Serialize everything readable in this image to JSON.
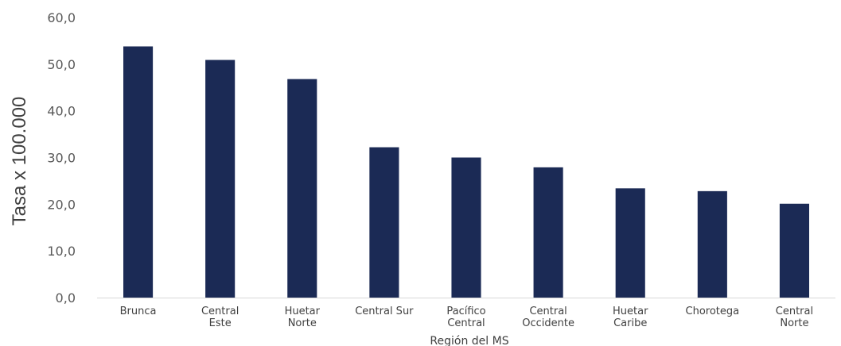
{
  "chart_data": {
    "type": "bar",
    "title": "",
    "categories": [
      "Brunca",
      "Central Este",
      "Huetar Norte",
      "Central Sur",
      "Pacífico Central",
      "Central Occidente",
      "Huetar Caribe",
      "Chorotega",
      "Central Norte"
    ],
    "category_lines": [
      [
        "Brunca"
      ],
      [
        "Central",
        "Este"
      ],
      [
        "Huetar",
        "Norte"
      ],
      [
        "Central Sur"
      ],
      [
        "Pacífico",
        "Central"
      ],
      [
        "Central",
        "Occidente"
      ],
      [
        "Huetar",
        "Caribe"
      ],
      [
        "Chorotega"
      ],
      [
        "Central",
        "Norte"
      ]
    ],
    "values": [
      53.8,
      50.9,
      46.8,
      32.2,
      30.0,
      27.9,
      23.4,
      22.8,
      20.1
    ],
    "xlabel": "Región del MS",
    "ylabel": "Tasa x 100.000",
    "ylim": [
      0,
      60
    ],
    "yticks": [
      "0,0",
      "10,0",
      "20,0",
      "30,0",
      "40,0",
      "50,0",
      "60,0"
    ],
    "grid": false,
    "legend": "none",
    "bar_color": "#1b2a55",
    "axis_color": "#d9d9d9"
  }
}
